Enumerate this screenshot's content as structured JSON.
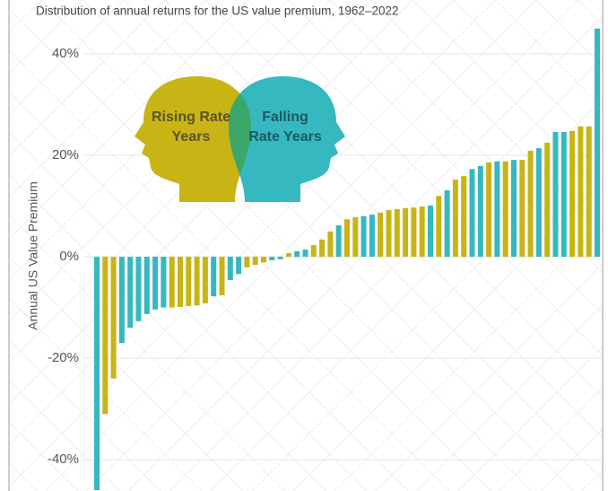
{
  "chart_data": {
    "type": "bar",
    "title": "Distribution of annual returns for the US value premium, 1962–2022",
    "y_label": "Annual US Value Premium",
    "ylim": [
      -46,
      50
    ],
    "yticks": [
      {
        "value": -40,
        "label": "-40%"
      },
      {
        "value": -20,
        "label": "-20%"
      },
      {
        "value": 0,
        "label": "0%"
      },
      {
        "value": 20,
        "label": "20%"
      },
      {
        "value": 40,
        "label": "40%"
      }
    ],
    "grid": true,
    "series": [
      {
        "name": "Rising Rate Years",
        "color": "#c8b414",
        "values": [
          null,
          -31,
          -24,
          null,
          null,
          null,
          null,
          null,
          null,
          -10,
          -9.9,
          -9.7,
          -9.6,
          -9.2,
          null,
          -7.6,
          null,
          null,
          -2.1,
          -1.6,
          -1.1,
          null,
          null,
          0.7,
          null,
          null,
          2.3,
          3.4,
          5,
          null,
          7.4,
          7.8,
          null,
          null,
          8.7,
          9.2,
          9.4,
          9.6,
          9.7,
          9.9,
          null,
          12,
          null,
          15.2,
          15.9,
          null,
          null,
          18.6,
          null,
          18.8,
          null,
          19.1,
          20.9,
          null,
          22.5,
          null,
          null,
          24.8,
          25.7,
          25.7,
          null
        ]
      },
      {
        "name": "Falling Rate Years",
        "color": "#35b8c0",
        "values": [
          -46,
          null,
          null,
          -17,
          -14,
          -12.7,
          -11.3,
          -10.4,
          -10,
          null,
          null,
          null,
          null,
          null,
          -7.8,
          null,
          -4.6,
          -3.4,
          null,
          null,
          null,
          -0.7,
          -0.5,
          null,
          1.1,
          1.4,
          null,
          null,
          null,
          6.2,
          null,
          null,
          8,
          8.3,
          null,
          null,
          null,
          null,
          null,
          null,
          10.1,
          null,
          13.1,
          null,
          null,
          17.3,
          17.9,
          null,
          18.8,
          null,
          19.1,
          null,
          null,
          21.4,
          null,
          24.6,
          24.6,
          null,
          null,
          null,
          45
        ]
      }
    ]
  }
}
